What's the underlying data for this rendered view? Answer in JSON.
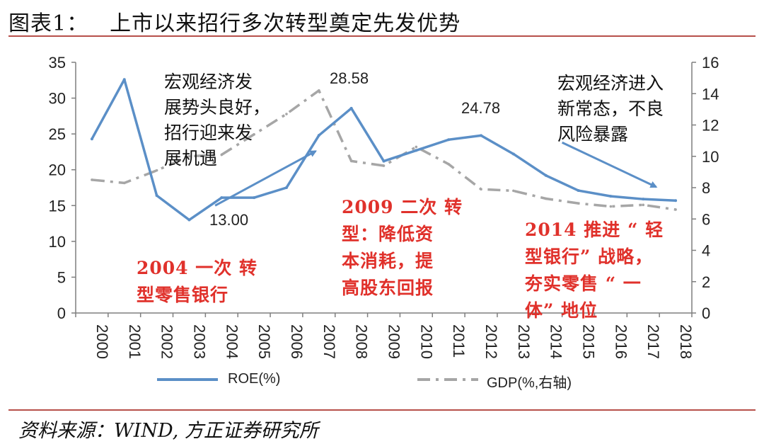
{
  "header": {
    "figure_no": "图表1：",
    "title": "上市以来招行多次转型奠定先发优势"
  },
  "source": "资料来源：WIND, 方正证券研究所",
  "colors": {
    "roe": "#5b8fc7",
    "gdp": "#a6a6a6",
    "axis": "#7f7f7f",
    "annotation_red": "#e0312b",
    "rule": "#b7504a"
  },
  "chart_data": {
    "type": "line",
    "x": [
      "2000",
      "2001",
      "2002",
      "2003",
      "2004",
      "2005",
      "2006",
      "2007",
      "2008",
      "2009",
      "2010",
      "2011",
      "2012",
      "2013",
      "2014",
      "2015",
      "2016",
      "2017",
      "2018"
    ],
    "series": [
      {
        "name": "ROE(%)",
        "axis": "left",
        "values": [
          24.3,
          32.6,
          16.4,
          13.0,
          16.1,
          16.1,
          17.5,
          24.8,
          28.58,
          21.2,
          22.7,
          24.2,
          24.78,
          22.2,
          19.2,
          17.1,
          16.3,
          15.9,
          15.7
        ]
      },
      {
        "name": "GDP(%,右轴)",
        "axis": "right",
        "values": [
          8.5,
          8.3,
          9.1,
          10.0,
          10.1,
          11.4,
          12.7,
          14.2,
          9.7,
          9.4,
          10.6,
          9.5,
          7.9,
          7.8,
          7.3,
          7.0,
          6.8,
          6.9,
          6.6
        ]
      }
    ],
    "yaxis_left": {
      "min": 0,
      "max": 35,
      "ticks": [
        "0",
        "5",
        "10",
        "15",
        "20",
        "25",
        "30",
        "35"
      ]
    },
    "yaxis_right": {
      "min": 0,
      "max": 16,
      "ticks": [
        "0",
        "2",
        "4",
        "6",
        "8",
        "10",
        "12",
        "14",
        "16"
      ]
    },
    "data_labels": [
      {
        "text": "28.58"
      },
      {
        "text": "24.78"
      },
      {
        "text": "13.00"
      }
    ],
    "annotations": {
      "macro_good": [
        "宏观经济发",
        "展势头良好，",
        "招行迎来发",
        "展机遇"
      ],
      "new_normal": [
        "宏观经济进入",
        "新常态，不良",
        "风险暴露"
      ],
      "t2004": [
        "2004 一次 转",
        "型零售银行"
      ],
      "t2009": [
        "2009 二次 转",
        "型：降低资",
        "本消耗，提",
        "高股东回报"
      ],
      "t2014": [
        "2014 推进 “ 轻",
        "型银行” 战略，",
        "夯实零售 “ 一",
        "体” 地位"
      ]
    },
    "legend_position": "bottom",
    "grid": false
  }
}
